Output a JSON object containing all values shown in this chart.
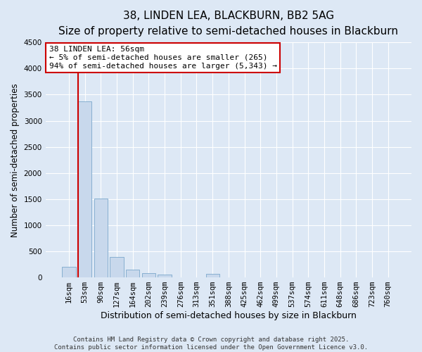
{
  "title1": "38, LINDEN LEA, BLACKBURN, BB2 5AG",
  "title2": "Size of property relative to semi-detached houses in Blackburn",
  "xlabel": "Distribution of semi-detached houses by size in Blackburn",
  "ylabel": "Number of semi-detached properties",
  "categories": [
    "16sqm",
    "53sqm",
    "90sqm",
    "127sqm",
    "164sqm",
    "202sqm",
    "239sqm",
    "276sqm",
    "313sqm",
    "351sqm",
    "388sqm",
    "425sqm",
    "462sqm",
    "499sqm",
    "537sqm",
    "574sqm",
    "611sqm",
    "648sqm",
    "686sqm",
    "723sqm",
    "760sqm"
  ],
  "values": [
    210,
    3370,
    1510,
    390,
    150,
    80,
    50,
    0,
    0,
    70,
    0,
    0,
    0,
    0,
    0,
    0,
    0,
    0,
    0,
    0,
    0
  ],
  "bar_color": "#c8d8ec",
  "bar_edge_color": "#7ba8cc",
  "vline_color": "#cc0000",
  "ylim": [
    0,
    4500
  ],
  "yticks": [
    0,
    500,
    1000,
    1500,
    2000,
    2500,
    3000,
    3500,
    4000,
    4500
  ],
  "annotation_text": "38 LINDEN LEA: 56sqm\n← 5% of semi-detached houses are smaller (265)\n94% of semi-detached houses are larger (5,343) →",
  "annotation_box_color": "#ffffff",
  "annotation_box_edge": "#cc0000",
  "background_color": "#dde8f5",
  "grid_color": "#ffffff",
  "footer_text": "Contains HM Land Registry data © Crown copyright and database right 2025.\nContains public sector information licensed under the Open Government Licence v3.0.",
  "title1_fontsize": 11,
  "title2_fontsize": 9.5,
  "xlabel_fontsize": 9,
  "ylabel_fontsize": 8.5,
  "tick_fontsize": 7.5,
  "annotation_fontsize": 8,
  "footer_fontsize": 6.5
}
